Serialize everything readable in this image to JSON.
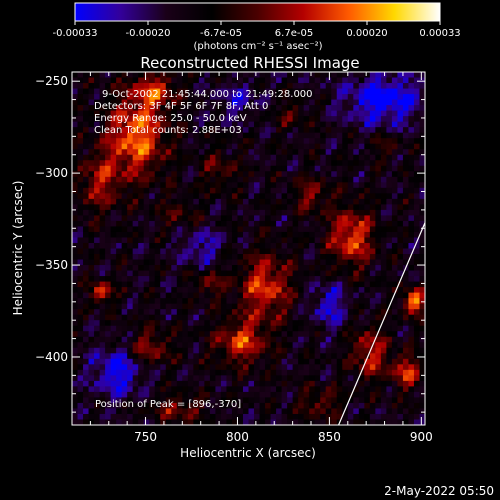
{
  "colors": {
    "colorbar_stops": [
      "#0000ff",
      "#33009a",
      "#1a0018",
      "#000000",
      "#4a0000",
      "#b40000",
      "#ff5a00",
      "#ffd800",
      "#ffffff"
    ],
    "text": "#ffffff",
    "background": "#000000"
  },
  "colorbar": {
    "ticks": [
      "-0.00033",
      "-0.00020",
      "-6.7e-05",
      "6.7e-05",
      "0.00020",
      "0.00033"
    ],
    "unit_line": "(photons cm⁻² s⁻¹ asec⁻²)"
  },
  "chart_data": {
    "type": "heatmap",
    "title": "Reconstructed RHESSI Image",
    "xlabel": "Heliocentric X (arcsec)",
    "ylabel": "Heliocentric Y (arcsec)",
    "xlim": [
      710,
      902
    ],
    "ylim": [
      -437,
      -245
    ],
    "xticks": [
      750,
      800,
      850,
      900
    ],
    "yticks": [
      -250,
      -300,
      -350,
      -400
    ],
    "xtick_labels": [
      "750",
      "800",
      "850",
      "900"
    ],
    "ytick_labels": [
      "−250",
      "−300",
      "−350",
      "−400"
    ],
    "color_range": [
      -0.00033,
      0.00033
    ],
    "peak_position": [
      896,
      -370
    ],
    "limb_line": [
      [
        855,
        -437
      ],
      [
        902,
        -327
      ]
    ],
    "bright_regions": [
      {
        "x": 745,
        "y": -280,
        "rx": 16,
        "ry": 22,
        "amp": 0.0003
      },
      {
        "x": 725,
        "y": -305,
        "rx": 12,
        "ry": 16,
        "amp": 0.00018
      },
      {
        "x": 755,
        "y": -255,
        "rx": 12,
        "ry": 10,
        "amp": 0.0002
      },
      {
        "x": 790,
        "y": -298,
        "rx": 10,
        "ry": 12,
        "amp": 0.00012
      },
      {
        "x": 768,
        "y": -322,
        "rx": 10,
        "ry": 9,
        "amp": 0.0001
      },
      {
        "x": 815,
        "y": -362,
        "rx": 14,
        "ry": 18,
        "amp": 0.00025
      },
      {
        "x": 802,
        "y": -392,
        "rx": 14,
        "ry": 12,
        "amp": 0.00024
      },
      {
        "x": 785,
        "y": -360,
        "rx": 8,
        "ry": 8,
        "amp": 0.00014
      },
      {
        "x": 752,
        "y": -395,
        "rx": 12,
        "ry": 10,
        "amp": 0.00018
      },
      {
        "x": 726,
        "y": -365,
        "rx": 6,
        "ry": 6,
        "amp": 0.00026
      },
      {
        "x": 862,
        "y": -335,
        "rx": 12,
        "ry": 16,
        "amp": 0.00027
      },
      {
        "x": 840,
        "y": -312,
        "rx": 10,
        "ry": 9,
        "amp": 0.00016
      },
      {
        "x": 872,
        "y": -398,
        "rx": 10,
        "ry": 14,
        "amp": 0.00022
      },
      {
        "x": 896,
        "y": -370,
        "rx": 6,
        "ry": 7,
        "amp": 0.00033
      },
      {
        "x": 892,
        "y": -408,
        "rx": 8,
        "ry": 9,
        "amp": 0.00024
      },
      {
        "x": 845,
        "y": -425,
        "rx": 12,
        "ry": 8,
        "amp": 0.00014
      },
      {
        "x": 768,
        "y": -428,
        "rx": 14,
        "ry": 7,
        "amp": 0.00016
      },
      {
        "x": 830,
        "y": -268,
        "rx": 10,
        "ry": 8,
        "amp": 0.0001
      },
      {
        "x": 880,
        "y": -285,
        "rx": 9,
        "ry": 8,
        "amp": 9e-05
      }
    ],
    "dim_regions": [
      {
        "x": 880,
        "y": -260,
        "rx": 22,
        "ry": 14,
        "amp": -0.00022
      },
      {
        "x": 735,
        "y": -408,
        "rx": 14,
        "ry": 14,
        "amp": -0.0002
      },
      {
        "x": 850,
        "y": -372,
        "rx": 10,
        "ry": 12,
        "amp": -0.00016
      },
      {
        "x": 780,
        "y": -340,
        "rx": 12,
        "ry": 10,
        "amp": -0.00014
      },
      {
        "x": 800,
        "y": -260,
        "rx": 12,
        "ry": 10,
        "amp": -0.00012
      }
    ]
  },
  "annotations": {
    "time_range": "9-Oct-2002 21:45:44.000 to 21:49:28.000",
    "detectors": "Detectors: 3F 4F 5F 6F 7F 8F, Att 0",
    "energy": "Energy Range: 25.0 - 50.0 keV",
    "method": "Clean   Total counts: 2.88E+03",
    "peak": "Position of Peak = [896,-370]"
  },
  "footer": {
    "timestamp": "2-May-2022 05:50"
  }
}
